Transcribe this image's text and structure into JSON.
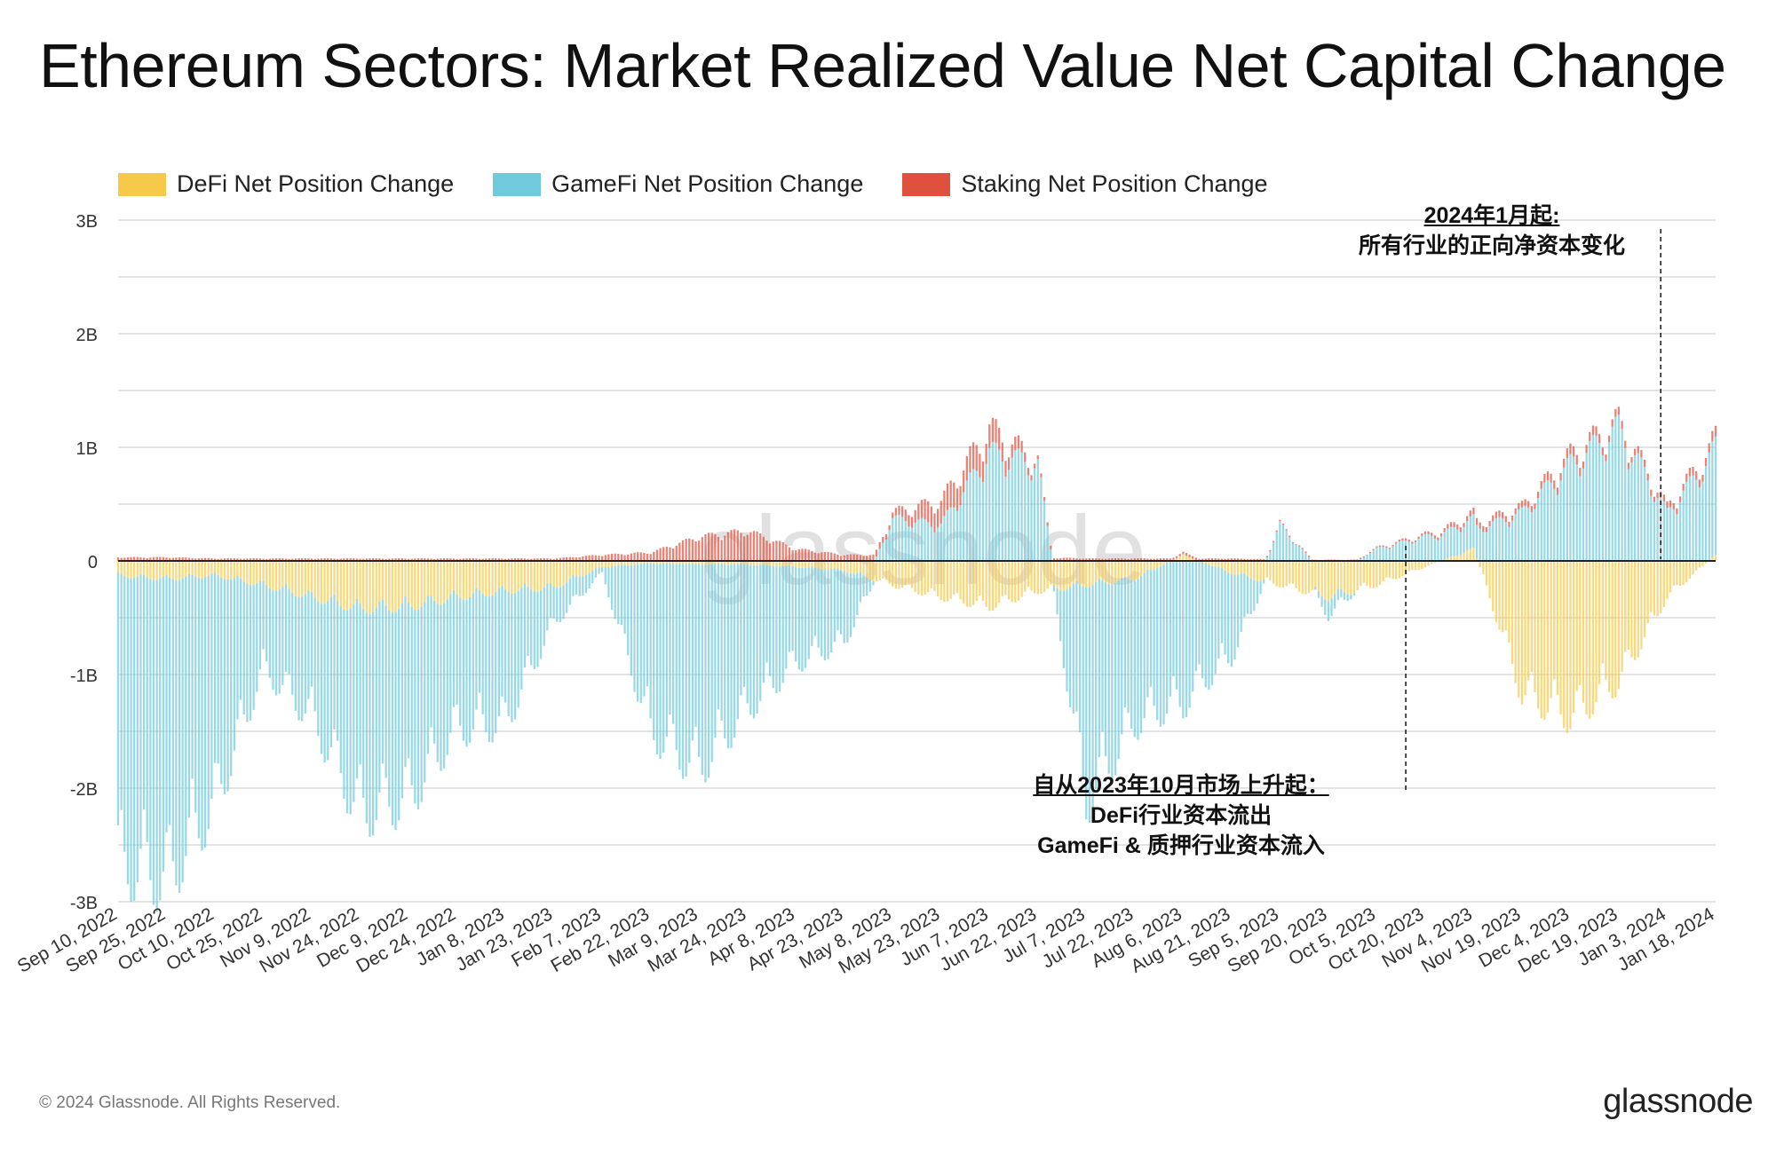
{
  "title": "Ethereum Sectors: Market Realized Value Net Capital Change",
  "legend": [
    {
      "label": "DeFi Net Position Change",
      "color": "#f7c948"
    },
    {
      "label": "GameFi Net Position Change",
      "color": "#6fcbdc"
    },
    {
      "label": "Staking Net Position Change",
      "color": "#e0503f"
    }
  ],
  "watermark": "glassnode",
  "footer": "© 2024 Glassnode. All Rights Reserved.",
  "brand": "glassnode",
  "annotations": {
    "jan2024": {
      "head": "2024年1月起:",
      "line1": "所有行业的正向净资本变化"
    },
    "oct2023": {
      "head": "自从2023年10月市场上升起：",
      "line1": "DeFi行业资本流出",
      "line2": "GameFi & 质押行业资本流入"
    }
  },
  "chart_data": {
    "type": "bar",
    "stacked": true,
    "title": "Ethereum Sectors: Market Realized Value Net Capital Change",
    "ylabel": "",
    "xlabel": "",
    "ylim": [
      -3,
      3
    ],
    "y_unit": "B",
    "y_ticks": [
      "-3B",
      "-2B",
      "-1B",
      "0",
      "1B",
      "2B",
      "3B"
    ],
    "y_tick_values": [
      -3,
      -2,
      -1,
      0,
      1,
      2,
      3
    ],
    "x_range": [
      "2022-09-10",
      "2024-01-18"
    ],
    "x_ticks": [
      "Sep 10, 2022",
      "Sep 25, 2022",
      "Oct 10, 2022",
      "Oct 25, 2022",
      "Nov 9, 2022",
      "Nov 24, 2022",
      "Dec 9, 2022",
      "Dec 24, 2022",
      "Jan 8, 2023",
      "Jan 23, 2023",
      "Feb 7, 2023",
      "Feb 22, 2023",
      "Mar 9, 2023",
      "Mar 24, 2023",
      "Apr 8, 2023",
      "Apr 23, 2023",
      "May 8, 2023",
      "May 23, 2023",
      "Jun 7, 2023",
      "Jun 22, 2023",
      "Jul 7, 2023",
      "Jul 22, 2023",
      "Aug 6, 2023",
      "Aug 21, 2023",
      "Sep 5, 2023",
      "Sep 20, 2023",
      "Oct 5, 2023",
      "Oct 20, 2023",
      "Nov 4, 2023",
      "Nov 19, 2023",
      "Dec 4, 2023",
      "Dec 19, 2023",
      "Jan 3, 2024",
      "Jan 18, 2024"
    ],
    "series": [
      {
        "name": "DeFi Net Position Change",
        "color": "#f7c948",
        "x": [
          "2022-09-10",
          "2022-09-25",
          "2022-10-10",
          "2022-10-25",
          "2022-11-09",
          "2022-11-24",
          "2022-12-09",
          "2022-12-24",
          "2023-01-08",
          "2023-01-23",
          "2023-02-07",
          "2023-02-22",
          "2023-03-09",
          "2023-03-24",
          "2023-04-08",
          "2023-04-23",
          "2023-05-08",
          "2023-05-23",
          "2023-06-07",
          "2023-06-22",
          "2023-07-07",
          "2023-07-22",
          "2023-08-06",
          "2023-08-21",
          "2023-09-05",
          "2023-09-20",
          "2023-10-05",
          "2023-10-20",
          "2023-11-04",
          "2023-11-19",
          "2023-12-04",
          "2023-12-19",
          "2024-01-03",
          "2024-01-18"
        ],
        "values": [
          -0.12,
          -0.15,
          -0.12,
          -0.2,
          -0.3,
          -0.4,
          -0.38,
          -0.3,
          -0.25,
          -0.22,
          -0.05,
          -0.02,
          -0.03,
          -0.03,
          -0.05,
          -0.08,
          -0.2,
          -0.3,
          -0.38,
          -0.25,
          -0.2,
          -0.15,
          0.05,
          -0.1,
          -0.2,
          -0.3,
          -0.2,
          -0.05,
          0.1,
          -1.1,
          -1.3,
          -1.0,
          -0.3,
          0.05
        ]
      },
      {
        "name": "GameFi Net Position Change",
        "color": "#6fcbdc",
        "x": [
          "2022-09-10",
          "2022-09-25",
          "2022-10-10",
          "2022-10-25",
          "2022-11-09",
          "2022-11-24",
          "2022-12-09",
          "2022-12-24",
          "2023-01-08",
          "2023-01-23",
          "2023-02-07",
          "2023-02-22",
          "2023-03-09",
          "2023-03-24",
          "2023-04-08",
          "2023-04-23",
          "2023-05-08",
          "2023-05-23",
          "2023-06-07",
          "2023-06-22",
          "2023-07-07",
          "2023-07-22",
          "2023-08-06",
          "2023-08-21",
          "2023-09-05",
          "2023-09-20",
          "2023-10-05",
          "2023-10-20",
          "2023-11-04",
          "2023-11-19",
          "2023-12-04",
          "2023-12-19",
          "2024-01-03",
          "2024-01-18"
        ],
        "values": [
          -2.4,
          -2.5,
          -1.9,
          -0.7,
          -1.0,
          -1.7,
          -1.6,
          -1.1,
          -1.1,
          -0.3,
          -0.05,
          -1.4,
          -1.7,
          -1.2,
          -0.8,
          -0.6,
          0.35,
          0.3,
          0.9,
          0.8,
          -1.8,
          -1.2,
          -1.2,
          -0.7,
          0.3,
          -0.15,
          0.1,
          0.2,
          0.25,
          0.4,
          0.8,
          1.1,
          0.4,
          0.9
        ]
      },
      {
        "name": "Staking Net Position Change",
        "color": "#e0503f",
        "x": [
          "2022-09-10",
          "2022-09-25",
          "2022-10-10",
          "2022-10-25",
          "2022-11-09",
          "2022-11-24",
          "2022-12-09",
          "2022-12-24",
          "2023-01-08",
          "2023-01-23",
          "2023-02-07",
          "2023-02-22",
          "2023-03-09",
          "2023-03-24",
          "2023-04-08",
          "2023-04-23",
          "2023-05-08",
          "2023-05-23",
          "2023-06-07",
          "2023-06-22",
          "2023-07-07",
          "2023-07-22",
          "2023-08-06",
          "2023-08-21",
          "2023-09-05",
          "2023-09-20",
          "2023-10-05",
          "2023-10-20",
          "2023-11-04",
          "2023-11-19",
          "2023-12-04",
          "2023-12-19",
          "2024-01-03",
          "2024-01-18"
        ],
        "values": [
          0.03,
          0.03,
          0.02,
          0.02,
          0.02,
          0.02,
          0.02,
          0.02,
          0.02,
          0.02,
          0.05,
          0.07,
          0.2,
          0.25,
          0.1,
          0.05,
          0.05,
          0.2,
          0.2,
          0.03,
          0.02,
          0.02,
          0.02,
          0.02,
          0.01,
          0.01,
          0.01,
          0.02,
          0.05,
          0.05,
          0.08,
          0.06,
          0.05,
          0.08
        ]
      }
    ],
    "vlines": [
      "2023-10-14",
      "2024-01-01"
    ]
  }
}
